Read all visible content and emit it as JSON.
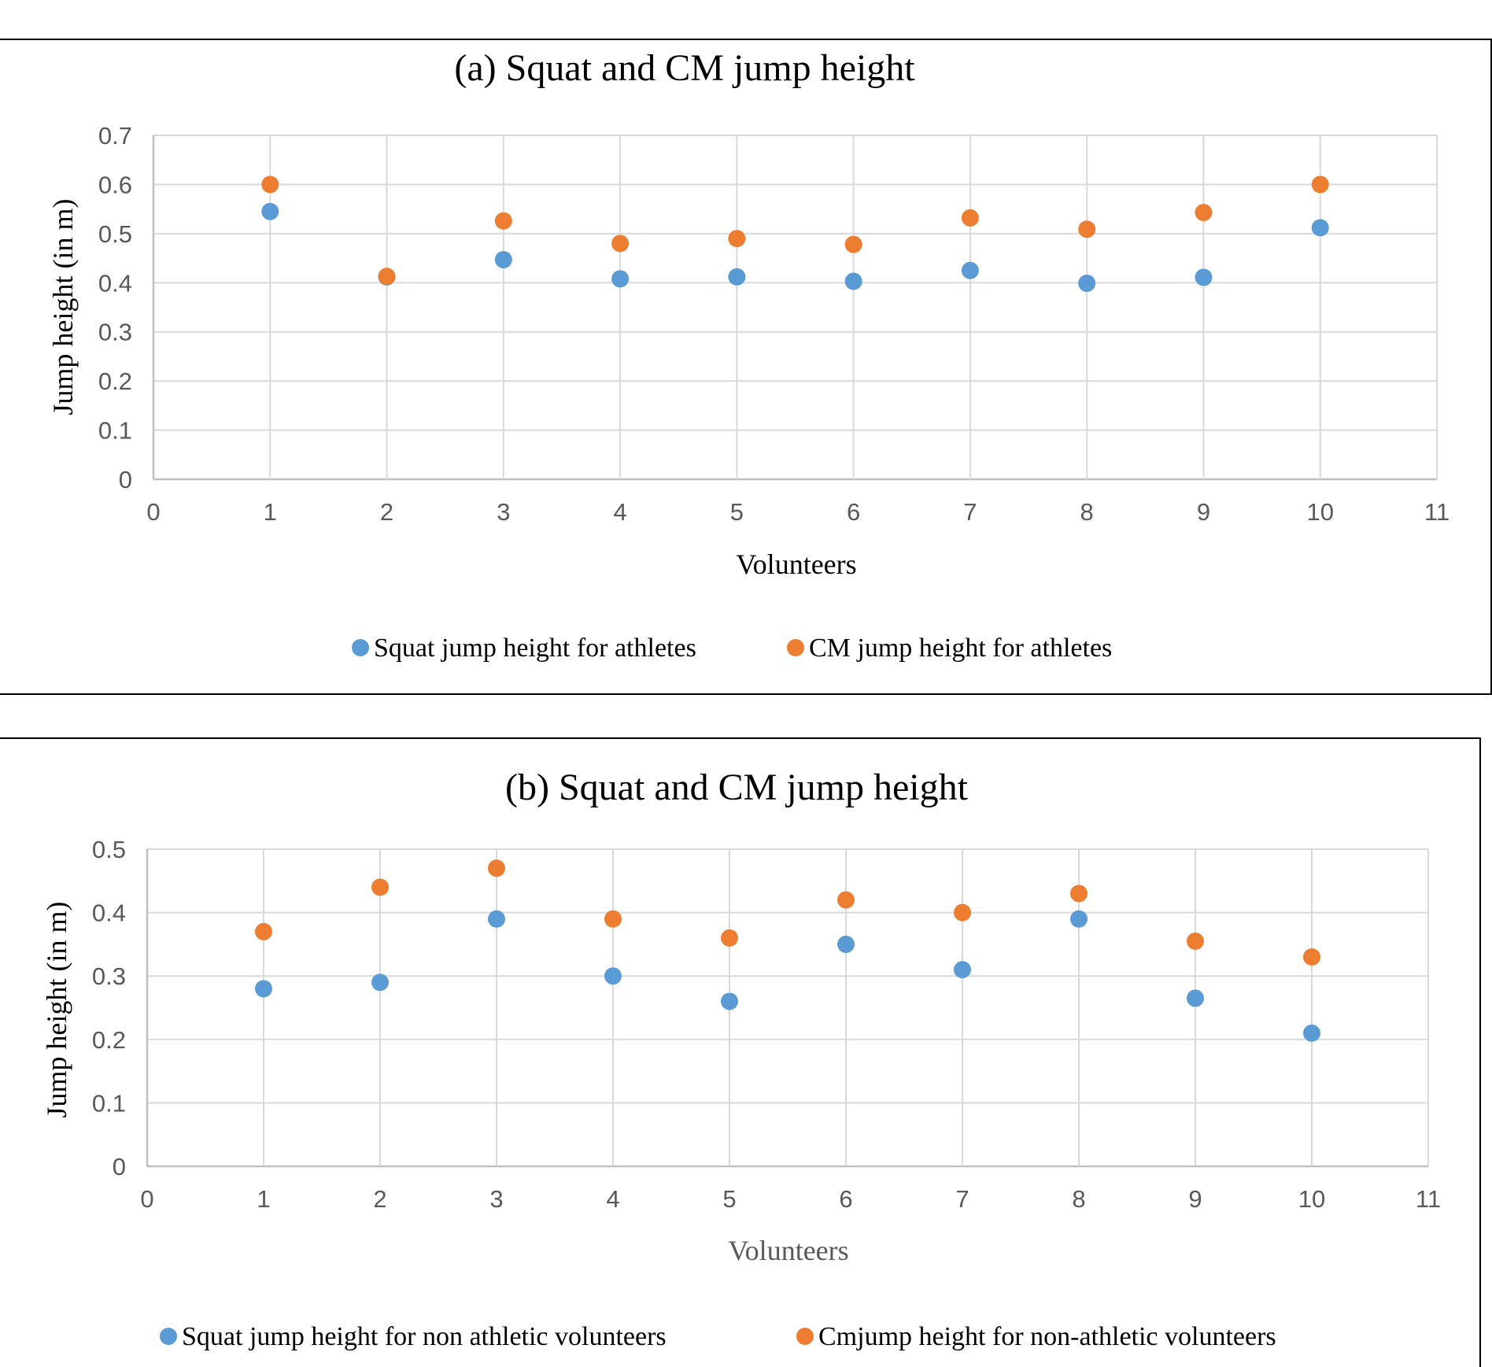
{
  "chart_data": [
    {
      "type": "scatter",
      "title": "(a) Squat and CM jump height",
      "xlabel": "Volunteers",
      "ylabel": "Jump height (in m)",
      "xlim": [
        0,
        11
      ],
      "ylim": [
        0,
        0.7
      ],
      "x_ticks": [
        "0",
        "1",
        "2",
        "3",
        "4",
        "5",
        "6",
        "7",
        "8",
        "9",
        "10",
        "11"
      ],
      "y_ticks": [
        "0",
        "0.1",
        "0.2",
        "0.3",
        "0.4",
        "0.5",
        "0.6",
        "0.7"
      ],
      "grid": true,
      "legend_position": "bottom",
      "series": [
        {
          "name": "Squat jump height for athletes",
          "color": "#5b9bd5",
          "points": [
            [
              1,
              0.545
            ],
            [
              2,
              0.412
            ],
            [
              3,
              0.447
            ],
            [
              4,
              0.408
            ],
            [
              5,
              0.412
            ],
            [
              6,
              0.403
            ],
            [
              7,
              0.425
            ],
            [
              8,
              0.399
            ],
            [
              9,
              0.411
            ],
            [
              10,
              0.512
            ]
          ]
        },
        {
          "name": "CM jump height for athletes",
          "color": "#ed7d31",
          "points": [
            [
              1,
              0.6
            ],
            [
              2,
              0.413
            ],
            [
              3,
              0.526
            ],
            [
              4,
              0.48
            ],
            [
              5,
              0.49
            ],
            [
              6,
              0.478
            ],
            [
              7,
              0.532
            ],
            [
              8,
              0.509
            ],
            [
              9,
              0.543
            ],
            [
              10,
              0.6
            ]
          ]
        }
      ]
    },
    {
      "type": "scatter",
      "title": "(b) Squat and CM jump height",
      "xlabel": "Volunteers",
      "ylabel": "Jump height (in m)",
      "xlim": [
        0,
        11
      ],
      "ylim": [
        0,
        0.5
      ],
      "x_ticks": [
        "0",
        "1",
        "2",
        "3",
        "4",
        "5",
        "6",
        "7",
        "8",
        "9",
        "10",
        "11"
      ],
      "y_ticks": [
        "0",
        "0.1",
        "0.2",
        "0.3",
        "0.4",
        "0.5"
      ],
      "grid": true,
      "legend_position": "bottom",
      "series": [
        {
          "name": "Squat jump height for non athletic volunteers",
          "color": "#5b9bd5",
          "points": [
            [
              1,
              0.28
            ],
            [
              2,
              0.29
            ],
            [
              3,
              0.39
            ],
            [
              4,
              0.3
            ],
            [
              5,
              0.26
            ],
            [
              6,
              0.35
            ],
            [
              7,
              0.31
            ],
            [
              8,
              0.39
            ],
            [
              9,
              0.265
            ],
            [
              10,
              0.21
            ]
          ]
        },
        {
          "name": "Cmjump height for non-athletic volunteers",
          "color": "#ed7d31",
          "points": [
            [
              1,
              0.37
            ],
            [
              2,
              0.44
            ],
            [
              3,
              0.47
            ],
            [
              4,
              0.39
            ],
            [
              5,
              0.36
            ],
            [
              6,
              0.42
            ],
            [
              7,
              0.4
            ],
            [
              8,
              0.43
            ],
            [
              9,
              0.355
            ],
            [
              10,
              0.33
            ]
          ]
        }
      ]
    }
  ]
}
